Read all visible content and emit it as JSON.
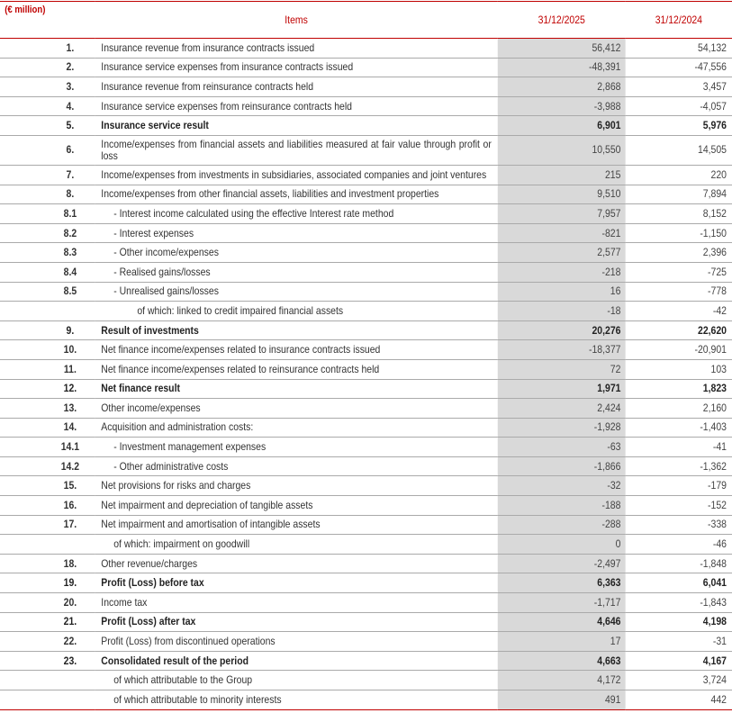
{
  "table": {
    "unit": "(€ million)",
    "headers": [
      "Items",
      "31/12/2025",
      "31/12/2024"
    ],
    "rows": [
      {
        "number": "1.",
        "item": "Insurance revenue from insurance contracts issued",
        "y2025": "56,412",
        "y2024": "54,132"
      },
      {
        "number": "2.",
        "item": "Insurance service expenses from insurance contracts issued",
        "y2025": "-48,391",
        "y2024": "-47,556"
      },
      {
        "number": "3.",
        "item": "Insurance revenue from reinsurance contracts held",
        "y2025": "2,868",
        "y2024": "3,457"
      },
      {
        "number": "4.",
        "item": "Insurance service expenses from reinsurance contracts held",
        "y2025": "-3,988",
        "y2024": "-4,057"
      },
      {
        "number": "5.",
        "item": "Insurance service result",
        "y2025": "6,901",
        "y2024": "5,976",
        "bold": true
      },
      {
        "number": "6.",
        "item": "Income/expenses from financial assets and liabilities measured at fair value through profit or loss",
        "y2025": "10,550",
        "y2024": "14,505"
      },
      {
        "number": "7.",
        "item": "Income/expenses from investments in subsidiaries, associated companies and joint ventures",
        "y2025": "215",
        "y2024": "220"
      },
      {
        "number": "8.",
        "item": "Income/expenses from other financial assets, liabilities and investment properties",
        "y2025": "9,510",
        "y2024": "7,894"
      },
      {
        "number": "8.1",
        "item": "- Interest income calculated using the effective Interest rate method",
        "y2025": "7,957",
        "y2024": "8,152",
        "indent": 1
      },
      {
        "number": "8.2",
        "item": "- Interest expenses",
        "y2025": "-821",
        "y2024": "-1,150",
        "indent": 1
      },
      {
        "number": "8.3",
        "item": "- Other income/expenses",
        "y2025": "2,577",
        "y2024": "2,396",
        "indent": 1
      },
      {
        "number": "8.4",
        "item": "- Realised gains/losses",
        "y2025": "-218",
        "y2024": "-725",
        "indent": 1
      },
      {
        "number": "8.5",
        "item": "- Unrealised gains/losses",
        "y2025": "16",
        "y2024": "-778",
        "indent": 1
      },
      {
        "number": null,
        "item": "of which: linked to credit impaired financial assets",
        "y2025": "-18",
        "y2024": "-42",
        "indent": 2
      },
      {
        "number": "9.",
        "item": "Result of investments",
        "y2025": "20,276",
        "y2024": "22,620",
        "bold": true
      },
      {
        "number": "10.",
        "item": "Net finance income/expenses related to insurance contracts issued",
        "y2025": "-18,377",
        "y2024": "-20,901"
      },
      {
        "number": "11.",
        "item": "Net finance income/expenses related to reinsurance contracts held",
        "y2025": "72",
        "y2024": "103"
      },
      {
        "number": "12.",
        "item": "Net finance result",
        "y2025": "1,971",
        "y2024": "1,823",
        "bold": true
      },
      {
        "number": "13.",
        "item": "Other income/expenses",
        "y2025": "2,424",
        "y2024": "2,160"
      },
      {
        "number": "14.",
        "item": "Acquisition and administration costs:",
        "y2025": "-1,928",
        "y2024": "-1,403"
      },
      {
        "number": "14.1",
        "item": "- Investment management expenses",
        "y2025": "-63",
        "y2024": "-41",
        "indent": 1
      },
      {
        "number": "14.2",
        "item": "- Other administrative costs",
        "y2025": "-1,866",
        "y2024": "-1,362",
        "indent": 1
      },
      {
        "number": "15.",
        "item": "Net provisions for risks and charges",
        "y2025": "-32",
        "y2024": "-179"
      },
      {
        "number": "16.",
        "item": "Net impairment and depreciation of tangible assets",
        "y2025": "-188",
        "y2024": "-152"
      },
      {
        "number": "17.",
        "item": "Net impairment and amortisation of intangible assets",
        "y2025": "-288",
        "y2024": "-338"
      },
      {
        "number": null,
        "item": "of which: impairment on goodwill",
        "y2025": "0",
        "y2024": "-46",
        "indent": 1
      },
      {
        "number": "18.",
        "item": "Other revenue/charges",
        "y2025": "-2,497",
        "y2024": "-1,848"
      },
      {
        "number": "19.",
        "item": "Profit (Loss) before tax",
        "y2025": "6,363",
        "y2024": "6,041",
        "bold": true
      },
      {
        "number": "20.",
        "item": "Income tax",
        "y2025": "-1,717",
        "y2024": "-1,843"
      },
      {
        "number": "21.",
        "item": "Profit (Loss) after tax",
        "y2025": "4,646",
        "y2024": "4,198",
        "bold": true
      },
      {
        "number": "22.",
        "item": "Profit (Loss) from discontinued operations",
        "y2025": "17",
        "y2024": "-31"
      },
      {
        "number": "23.",
        "item": "Consolidated result of the period",
        "y2025": "4,663",
        "y2024": "4,167",
        "bold": true
      },
      {
        "number": null,
        "item": "of which attributable to the Group",
        "y2025": "4,172",
        "y2024": "3,724",
        "indent": 1
      },
      {
        "number": null,
        "item": "of which attributable to minority interests",
        "y2025": "491",
        "y2024": "442",
        "indent": 1
      }
    ]
  }
}
